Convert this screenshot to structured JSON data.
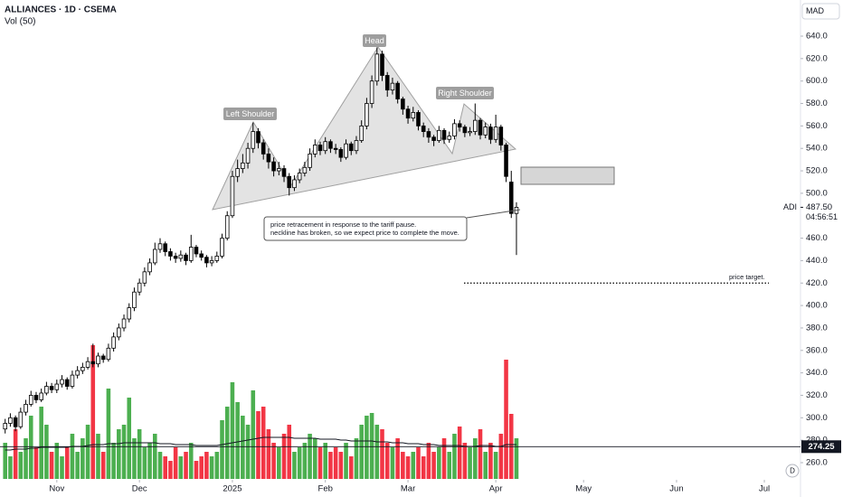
{
  "chart_data": {
    "type": "candlestick",
    "title": "ALLIANCES · 1D · CSEMA",
    "subtitle": "Vol (50)",
    "currency": "MAD",
    "logo_button": "D",
    "up_color": "#ffffff",
    "down_color": "#000000",
    "volume_up_color": "#4caf50",
    "volume_down_color": "#f23645",
    "xlim": [
      -1,
      154
    ],
    "xticks": [
      {
        "value": 10,
        "label": "Nov"
      },
      {
        "value": 26,
        "label": "Dec"
      },
      {
        "value": 44,
        "label": "2025"
      },
      {
        "value": 62,
        "label": "Feb"
      },
      {
        "value": 78,
        "label": "Mar"
      },
      {
        "value": 95,
        "label": "Apr"
      },
      {
        "value": 112,
        "label": "May"
      },
      {
        "value": 130,
        "label": "Jun"
      },
      {
        "value": 147,
        "label": "Jul"
      }
    ],
    "ylim": [
      245.5,
      672.2
    ],
    "yticks": [
      {
        "value": 260,
        "label": "260.0"
      },
      {
        "value": 280,
        "label": "280.0"
      },
      {
        "value": 300,
        "label": "300.0"
      },
      {
        "value": 320,
        "label": "320.0"
      },
      {
        "value": 340,
        "label": "340.0"
      },
      {
        "value": 360,
        "label": "360.0"
      },
      {
        "value": 380,
        "label": "380.0"
      },
      {
        "value": 400,
        "label": "400.0"
      },
      {
        "value": 420,
        "label": "420.0"
      },
      {
        "value": 440,
        "label": "440.0"
      },
      {
        "value": 460,
        "label": "460.0"
      },
      {
        "value": 500,
        "label": "500.0"
      },
      {
        "value": 520,
        "label": "520.0"
      },
      {
        "value": 540,
        "label": "540.0"
      },
      {
        "value": 560,
        "label": "560.0"
      },
      {
        "value": 580,
        "label": "580.0"
      },
      {
        "value": 600,
        "label": "600.0"
      },
      {
        "value": 620,
        "label": "620.0"
      },
      {
        "value": 640,
        "label": "640.0"
      }
    ],
    "volume_lim": [
      0,
      150
    ],
    "ohlc": [
      [
        290,
        299,
        286,
        295
      ],
      [
        295,
        304,
        292,
        300
      ],
      [
        300,
        302,
        288,
        292
      ],
      [
        292,
        309,
        290,
        305
      ],
      [
        305,
        316,
        302,
        312
      ],
      [
        312,
        324,
        310,
        320
      ],
      [
        320,
        323,
        313,
        316
      ],
      [
        316,
        326,
        314,
        322
      ],
      [
        322,
        332,
        320,
        328
      ],
      [
        328,
        331,
        322,
        325
      ],
      [
        325,
        334,
        322,
        330
      ],
      [
        330,
        338,
        327,
        334
      ],
      [
        334,
        336,
        325,
        328
      ],
      [
        328,
        342,
        326,
        338
      ],
      [
        338,
        346,
        335,
        342
      ],
      [
        342,
        349,
        339,
        345
      ],
      [
        345,
        354,
        343,
        350
      ],
      [
        350,
        366,
        345,
        348
      ],
      [
        348,
        358,
        345,
        355
      ],
      [
        355,
        357,
        349,
        352
      ],
      [
        352,
        366,
        350,
        362
      ],
      [
        362,
        376,
        359,
        372
      ],
      [
        372,
        384,
        369,
        380
      ],
      [
        380,
        392,
        377,
        388
      ],
      [
        388,
        402,
        385,
        398
      ],
      [
        398,
        416,
        395,
        412
      ],
      [
        412,
        424,
        409,
        420
      ],
      [
        420,
        434,
        417,
        430
      ],
      [
        430,
        442,
        427,
        438
      ],
      [
        438,
        456,
        436,
        450
      ],
      [
        450,
        460,
        447,
        455
      ],
      [
        455,
        457,
        444,
        448
      ],
      [
        448,
        451,
        440,
        444
      ],
      [
        444,
        447,
        438,
        442
      ],
      [
        442,
        449,
        439,
        445
      ],
      [
        445,
        447,
        436,
        440
      ],
      [
        440,
        463,
        438,
        452
      ],
      [
        452,
        454,
        443,
        446
      ],
      [
        446,
        449,
        440,
        443
      ],
      [
        443,
        445,
        434,
        438
      ],
      [
        438,
        444,
        435,
        440
      ],
      [
        440,
        448,
        438,
        444
      ],
      [
        444,
        464,
        442,
        460
      ],
      [
        460,
        484,
        458,
        480
      ],
      [
        480,
        520,
        478,
        515
      ],
      [
        515,
        530,
        510,
        522
      ],
      [
        522,
        535,
        518,
        527
      ],
      [
        527,
        545,
        522,
        540
      ],
      [
        540,
        563,
        536,
        555
      ],
      [
        555,
        558,
        540,
        545
      ],
      [
        545,
        548,
        530,
        535
      ],
      [
        535,
        540,
        522,
        528
      ],
      [
        528,
        532,
        515,
        520
      ],
      [
        520,
        528,
        516,
        522
      ],
      [
        522,
        525,
        510,
        515
      ],
      [
        515,
        518,
        498,
        505
      ],
      [
        505,
        516,
        502,
        512
      ],
      [
        512,
        522,
        509,
        518
      ],
      [
        518,
        528,
        515,
        523
      ],
      [
        523,
        540,
        520,
        535
      ],
      [
        535,
        548,
        532,
        543
      ],
      [
        543,
        546,
        534,
        538
      ],
      [
        538,
        550,
        535,
        546
      ],
      [
        546,
        548,
        536,
        540
      ],
      [
        540,
        544,
        535,
        539
      ],
      [
        539,
        541,
        528,
        532
      ],
      [
        532,
        548,
        530,
        544
      ],
      [
        544,
        546,
        534,
        538
      ],
      [
        538,
        551,
        535,
        547
      ],
      [
        547,
        565,
        545,
        560
      ],
      [
        560,
        585,
        557,
        580
      ],
      [
        580,
        605,
        576,
        600
      ],
      [
        600,
        630,
        596,
        624
      ],
      [
        624,
        627,
        600,
        605
      ],
      [
        605,
        608,
        586,
        592
      ],
      [
        592,
        603,
        588,
        598
      ],
      [
        598,
        600,
        580,
        584
      ],
      [
        584,
        586,
        570,
        575
      ],
      [
        575,
        578,
        562,
        567
      ],
      [
        567,
        577,
        564,
        572
      ],
      [
        572,
        574,
        556,
        560
      ],
      [
        560,
        563,
        550,
        555
      ],
      [
        555,
        558,
        545,
        550
      ],
      [
        550,
        552,
        542,
        547
      ],
      [
        547,
        560,
        545,
        556
      ],
      [
        556,
        558,
        544,
        548
      ],
      [
        548,
        555,
        545,
        551
      ],
      [
        551,
        566,
        548,
        562
      ],
      [
        562,
        565,
        555,
        559
      ],
      [
        559,
        561,
        550,
        554
      ],
      [
        554,
        559,
        551,
        555
      ],
      [
        555,
        580,
        552,
        565
      ],
      [
        565,
        567,
        548,
        552
      ],
      [
        552,
        563,
        549,
        559
      ],
      [
        559,
        562,
        544,
        548
      ],
      [
        548,
        570,
        545,
        559
      ],
      [
        559,
        561,
        538,
        543
      ],
      [
        543,
        545,
        510,
        515
      ],
      [
        510,
        520,
        478,
        482
      ],
      [
        482,
        492,
        445,
        487.5
      ]
    ],
    "volume": [
      40,
      25,
      55,
      30,
      45,
      70,
      35,
      80,
      60,
      30,
      40,
      25,
      35,
      50,
      30,
      45,
      60,
      148,
      50,
      30,
      100,
      40,
      55,
      60,
      90,
      45,
      55,
      35,
      40,
      50,
      30,
      25,
      20,
      35,
      25,
      30,
      40,
      20,
      25,
      30,
      25,
      30,
      65,
      80,
      107,
      85,
      70,
      60,
      98,
      75,
      80,
      55,
      40,
      35,
      50,
      60,
      30,
      35,
      40,
      50,
      45,
      35,
      40,
      30,
      35,
      30,
      40,
      25,
      45,
      60,
      70,
      73,
      60,
      55,
      40,
      35,
      45,
      30,
      25,
      30,
      35,
      25,
      40,
      30,
      35,
      45,
      30,
      50,
      58,
      40,
      35,
      45,
      55,
      30,
      40,
      30,
      50,
      132,
      72,
      45
    ],
    "volume_ma": [
      32,
      32,
      33,
      33,
      33,
      34,
      34,
      35,
      35,
      35,
      35,
      35,
      35,
      36,
      36,
      36,
      37,
      38,
      38,
      38,
      39,
      39,
      39,
      40,
      40,
      40,
      40,
      40,
      40,
      40,
      39,
      39,
      39,
      38,
      38,
      38,
      38,
      37,
      37,
      37,
      37,
      37,
      38,
      39,
      40,
      41,
      42,
      43,
      44,
      45,
      46,
      46,
      46,
      46,
      46,
      46,
      45,
      45,
      45,
      45,
      45,
      44,
      44,
      44,
      44,
      43,
      43,
      42,
      42,
      42,
      42,
      42,
      41,
      41,
      41,
      40,
      40,
      40,
      39,
      39,
      39,
      38,
      38,
      38,
      37,
      37,
      37,
      37,
      37,
      36,
      36,
      36,
      37,
      37,
      37,
      36,
      36,
      38,
      38,
      38
    ],
    "last_price": {
      "value": 487.5,
      "label": "487.50",
      "symbol": "ADI",
      "countdown": "04:56:51"
    },
    "level_line": {
      "value": 274.25,
      "label": "274.25"
    },
    "annotations": {
      "left_shoulder": "Left Shoulder",
      "head": "Head",
      "right_shoulder": "Right Shoulder",
      "note": [
        "price retracement in response to the tariff pause.",
        "neckline has broken, so we expect price to complete the move."
      ],
      "target": {
        "value": 420,
        "label": "price target."
      }
    }
  }
}
